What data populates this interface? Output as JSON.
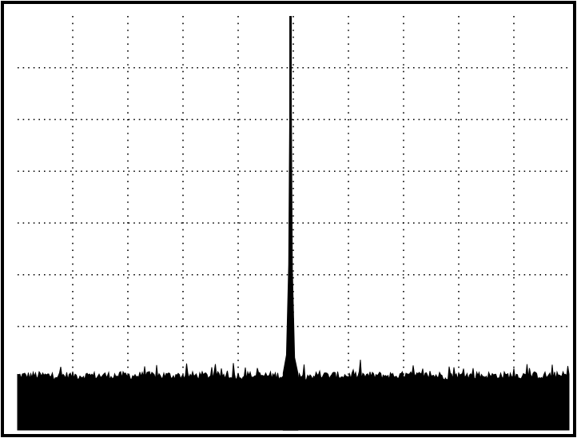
{
  "chart_data": {
    "type": "line",
    "title": "",
    "xlabel": "",
    "ylabel": "",
    "grid": true,
    "grid_style": "dotted",
    "grid_divisions": {
      "x": 10,
      "y": 8
    },
    "xlim": [
      0,
      10
    ],
    "ylim": [
      0,
      8
    ],
    "colors": {
      "trace": "#000000",
      "grid": "#000000",
      "background": "#ffffff",
      "border": "#000000"
    },
    "series": [
      {
        "type": "noise_floor_band",
        "noise_top_level": 1.05,
        "noise_spread": 0.08,
        "noise_spikes_max": 0.25
      },
      {
        "type": "peak",
        "peak_x": 4.95,
        "peak_y": 8.0,
        "x": [
          4.82,
          4.88,
          4.92,
          4.95,
          4.98,
          5.02,
          5.08
        ],
        "y": [
          1.1,
          1.45,
          3.2,
          8.0,
          3.1,
          1.4,
          1.1
        ]
      }
    ]
  }
}
